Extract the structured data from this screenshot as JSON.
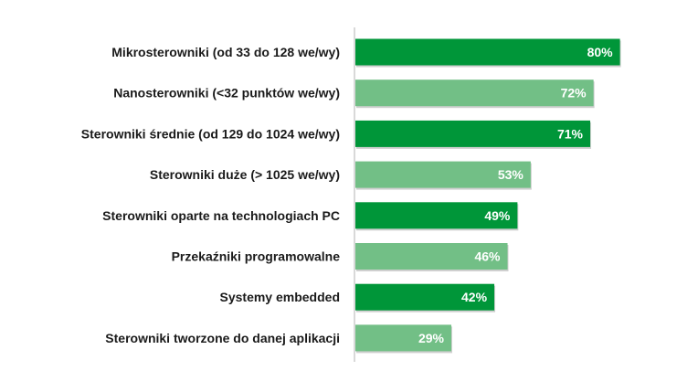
{
  "chart_data": {
    "type": "bar",
    "orientation": "horizontal",
    "categories": [
      "Mikrosterowniki (od 33 do 128 we/wy)",
      "Nanosterowniki (<32 punktów we/wy)",
      "Sterowniki średnie (od 129 do 1024 we/wy)",
      "Sterowniki duże (> 1025 we/wy)",
      "Sterowniki oparte na technologiach PC",
      "Przekaźniki programowalne",
      "Systemy embedded",
      "Sterowniki tworzone do danej aplikacji"
    ],
    "values": [
      80,
      72,
      71,
      53,
      49,
      46,
      42,
      29
    ],
    "value_labels": [
      "80%",
      "72%",
      "71%",
      "53%",
      "49%",
      "46%",
      "42%",
      "29%"
    ],
    "unit": "%",
    "xlim": [
      0,
      100
    ],
    "colors": [
      "#009639",
      "#72bf86",
      "#009639",
      "#72bf86",
      "#009639",
      "#72bf86",
      "#009639",
      "#72bf86"
    ],
    "axis_color": "#b3b3b3",
    "grid": false,
    "legend": "none",
    "title": "",
    "xlabel": "",
    "ylabel": ""
  }
}
